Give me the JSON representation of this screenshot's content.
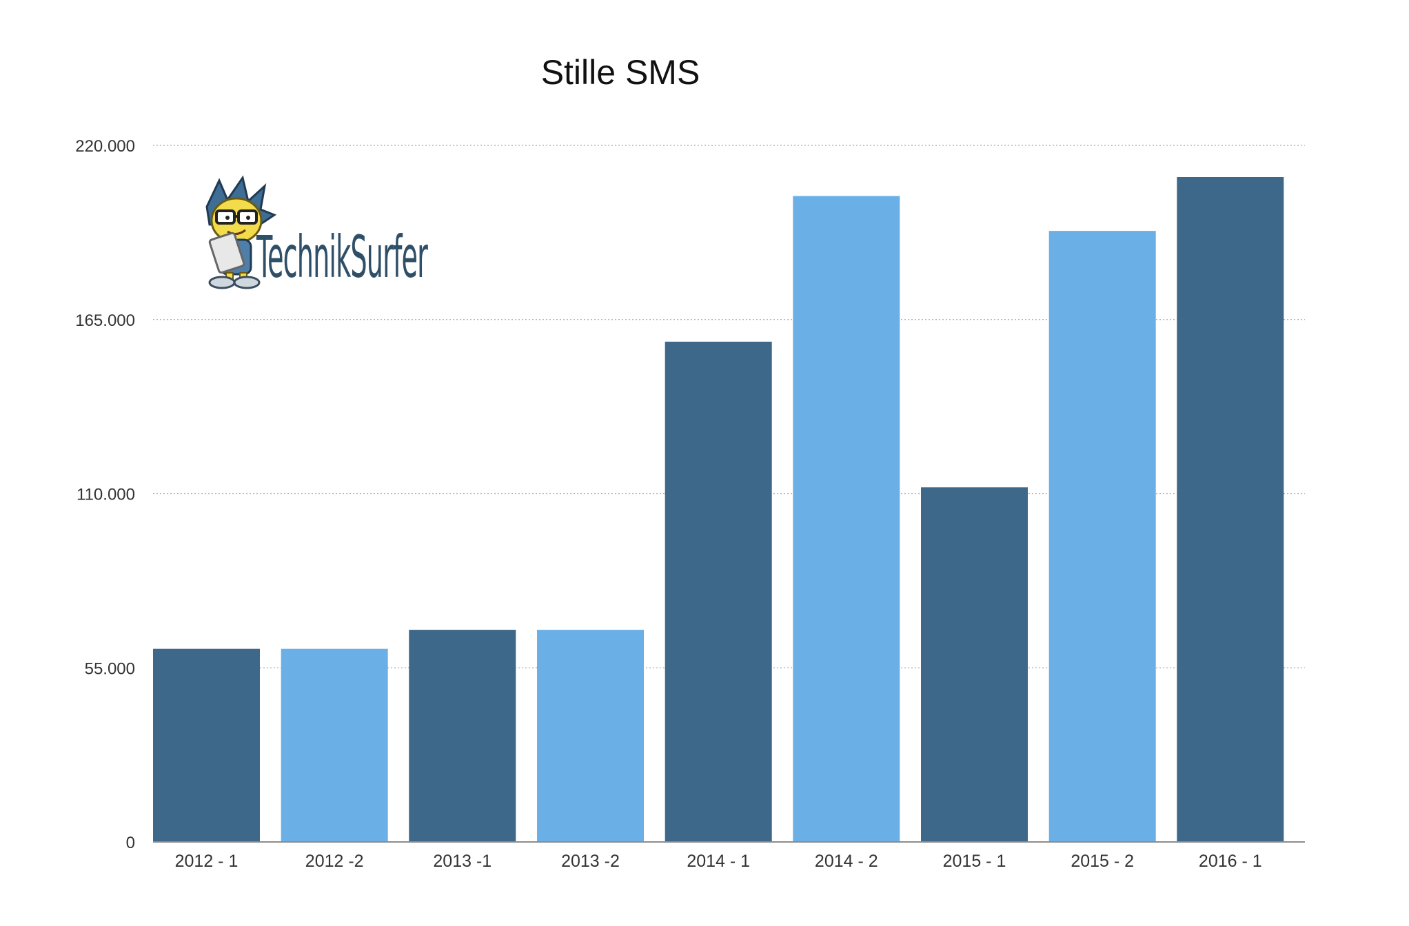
{
  "chart_data": {
    "type": "bar",
    "title": "Stille SMS",
    "xlabel": "",
    "ylabel": "",
    "categories": [
      "2012 - 1",
      "2012 -2",
      "2013 -1",
      "2013 -2",
      "2014 - 1",
      "2014 - 2",
      "2015 - 1",
      "2015 - 2",
      "2016 - 1"
    ],
    "values": [
      61000,
      61000,
      67000,
      67000,
      158000,
      204000,
      112000,
      193000,
      210000
    ],
    "ylim": [
      0,
      220000
    ],
    "y_ticks": [
      0,
      55000,
      110000,
      165000,
      220000
    ],
    "y_tick_labels": [
      "0",
      "55.000",
      "110.000",
      "165.000",
      "220.000"
    ],
    "grid": true,
    "legend": "none",
    "colors": {
      "bar_dark": "#3d6889",
      "bar_light": "#6ab0e6"
    }
  },
  "watermark": {
    "text": "TechnikSurfer",
    "icon": "cartoon-mascot-icon"
  }
}
